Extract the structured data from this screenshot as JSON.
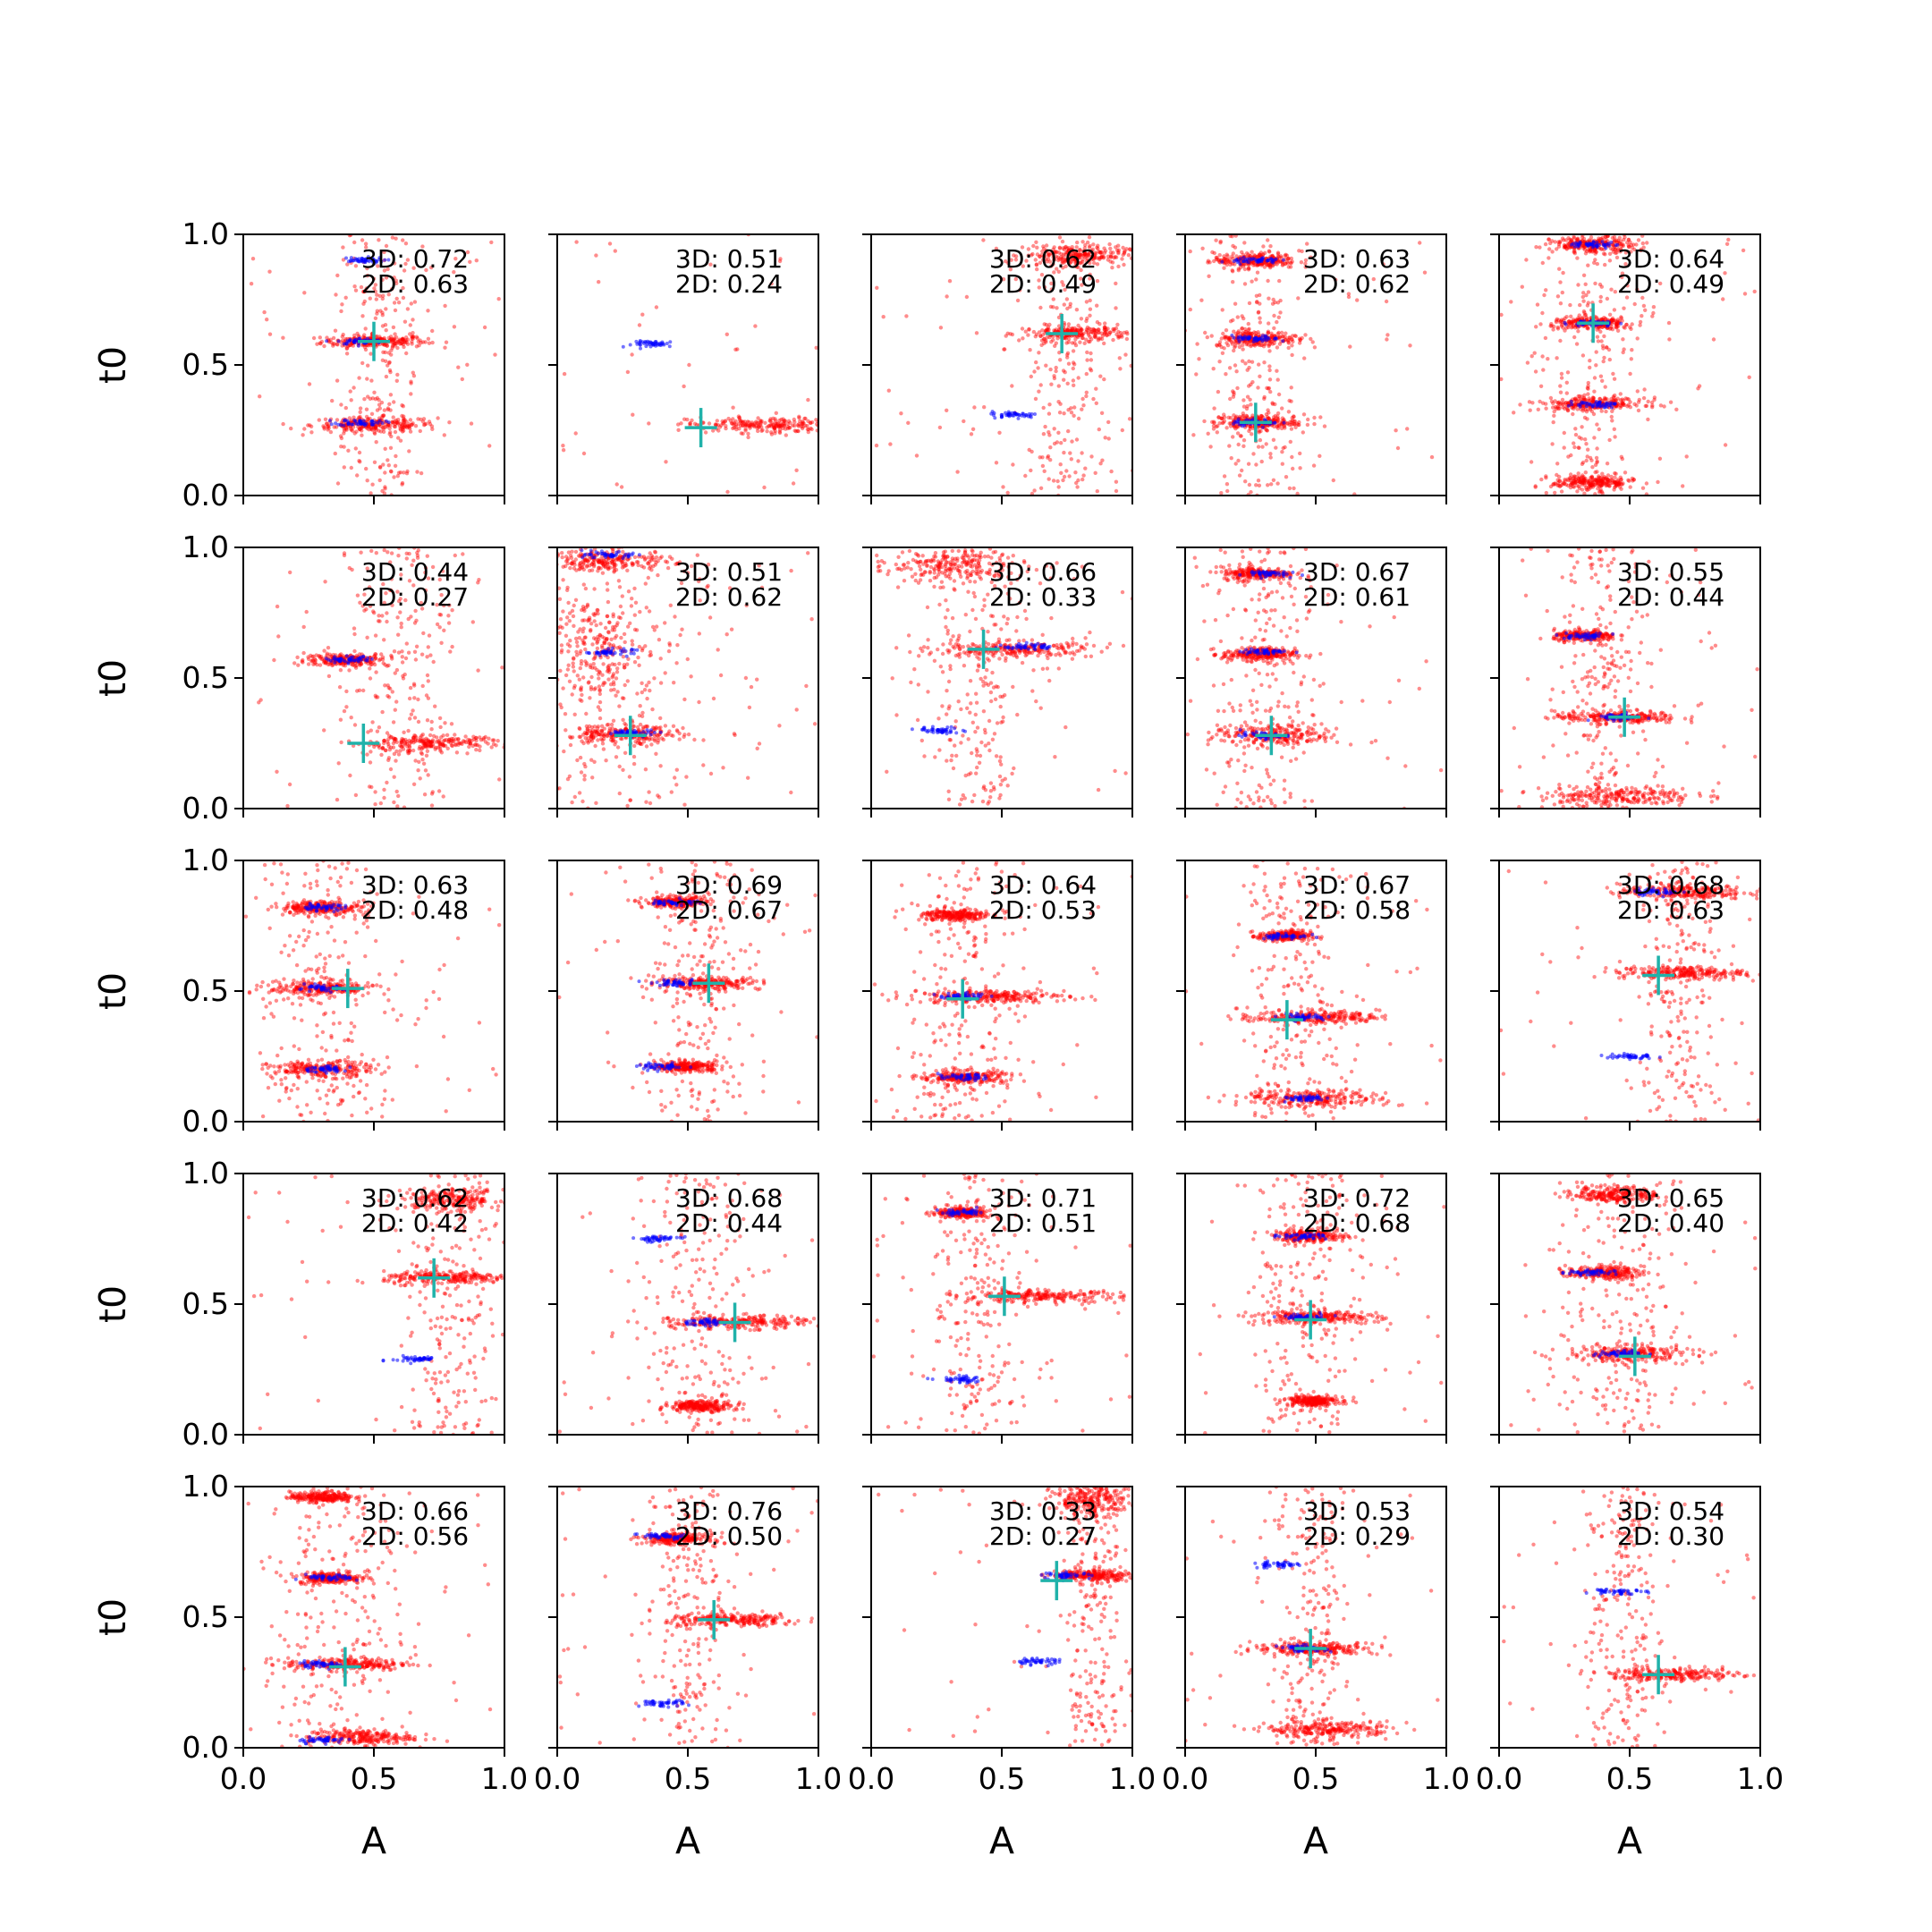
{
  "figure": {
    "rows": 5,
    "cols": 5,
    "xlabel": "A",
    "ylabel": "t0",
    "xlim": [
      0,
      1
    ],
    "ylim": [
      0,
      1
    ],
    "xticks": [
      "0.0",
      "0.5",
      "1.0"
    ],
    "yticks": [
      "0.0",
      "0.5",
      "1.0"
    ],
    "colors": {
      "model_points": "#ff0000",
      "reference_points": "#0000ff",
      "true_marker": "#20b2aa",
      "axes": "#000000"
    }
  },
  "chart_data": [
    {
      "type": "scatter",
      "row": 0,
      "col": 0,
      "annot_3d": "3D: 0.72",
      "annot_2d": "2D: 0.63",
      "truth": {
        "A": 0.5,
        "t0": 0.59
      },
      "red_clusters": [
        {
          "A": 0.5,
          "t0": 0.59,
          "spread_A": 0.1,
          "spread_t0": 0.012
        },
        {
          "A": 0.5,
          "t0": 0.27,
          "spread_A": 0.12,
          "spread_t0": 0.015
        }
      ],
      "blue_clusters": [
        {
          "A": 0.45,
          "t0": 0.59
        },
        {
          "A": 0.45,
          "t0": 0.28
        },
        {
          "A": 0.45,
          "t0": 0.9
        }
      ],
      "vertical_spread": {
        "A": 0.52,
        "width": 0.08
      }
    },
    {
      "type": "scatter",
      "row": 0,
      "col": 1,
      "annot_3d": "3D: 0.51",
      "annot_2d": "2D: 0.24",
      "truth": {
        "A": 0.55,
        "t0": 0.26
      },
      "red_clusters": [
        {
          "A": 0.8,
          "t0": 0.27,
          "spread_A": 0.15,
          "spread_t0": 0.015
        }
      ],
      "blue_clusters": [
        {
          "A": 0.38,
          "t0": 0.58
        }
      ],
      "vertical_spread": null
    },
    {
      "type": "scatter",
      "row": 0,
      "col": 2,
      "annot_3d": "3D: 0.62",
      "annot_2d": "2D: 0.49",
      "truth": {
        "A": 0.73,
        "t0": 0.62
      },
      "red_clusters": [
        {
          "A": 0.78,
          "t0": 0.62,
          "spread_A": 0.1,
          "spread_t0": 0.015
        },
        {
          "A": 0.78,
          "t0": 0.92,
          "spread_A": 0.1,
          "spread_t0": 0.02
        }
      ],
      "blue_clusters": [
        {
          "A": 0.55,
          "t0": 0.31
        }
      ],
      "vertical_spread": {
        "A": 0.75,
        "width": 0.1
      }
    },
    {
      "type": "scatter",
      "row": 0,
      "col": 3,
      "annot_3d": "3D: 0.63",
      "annot_2d": "2D: 0.62",
      "truth": {
        "A": 0.27,
        "t0": 0.28
      },
      "red_clusters": [
        {
          "A": 0.27,
          "t0": 0.6,
          "spread_A": 0.08,
          "spread_t0": 0.015
        },
        {
          "A": 0.27,
          "t0": 0.28,
          "spread_A": 0.08,
          "spread_t0": 0.015
        },
        {
          "A": 0.27,
          "t0": 0.9,
          "spread_A": 0.08,
          "spread_t0": 0.015
        }
      ],
      "blue_clusters": [
        {
          "A": 0.27,
          "t0": 0.28
        },
        {
          "A": 0.27,
          "t0": 0.6
        },
        {
          "A": 0.27,
          "t0": 0.9
        }
      ],
      "vertical_spread": {
        "A": 0.27,
        "width": 0.1
      }
    },
    {
      "type": "scatter",
      "row": 0,
      "col": 4,
      "annot_3d": "3D: 0.64",
      "annot_2d": "2D: 0.49",
      "truth": {
        "A": 0.36,
        "t0": 0.66
      },
      "red_clusters": [
        {
          "A": 0.36,
          "t0": 0.66,
          "spread_A": 0.08,
          "spread_t0": 0.012
        },
        {
          "A": 0.36,
          "t0": 0.35,
          "spread_A": 0.1,
          "spread_t0": 0.012
        },
        {
          "A": 0.36,
          "t0": 0.05,
          "spread_A": 0.08,
          "spread_t0": 0.015
        },
        {
          "A": 0.36,
          "t0": 0.96,
          "spread_A": 0.08,
          "spread_t0": 0.015
        }
      ],
      "blue_clusters": [
        {
          "A": 0.36,
          "t0": 0.96
        },
        {
          "A": 0.36,
          "t0": 0.66
        },
        {
          "A": 0.36,
          "t0": 0.35
        }
      ],
      "vertical_spread": {
        "A": 0.36,
        "width": 0.1
      }
    },
    {
      "type": "scatter",
      "row": 1,
      "col": 0,
      "annot_3d": "3D: 0.44",
      "annot_2d": "2D: 0.27",
      "truth": {
        "A": 0.46,
        "t0": 0.25
      },
      "red_clusters": [
        {
          "A": 0.7,
          "t0": 0.25,
          "spread_A": 0.15,
          "spread_t0": 0.015
        },
        {
          "A": 0.4,
          "t0": 0.57,
          "spread_A": 0.08,
          "spread_t0": 0.012
        }
      ],
      "blue_clusters": [
        {
          "A": 0.4,
          "t0": 0.57
        }
      ],
      "vertical_spread": {
        "A": 0.6,
        "width": 0.12
      }
    },
    {
      "type": "scatter",
      "row": 1,
      "col": 1,
      "annot_3d": "3D: 0.51",
      "annot_2d": "2D: 0.62",
      "truth": {
        "A": 0.28,
        "t0": 0.28
      },
      "red_clusters": [
        {
          "A": 0.25,
          "t0": 0.28,
          "spread_A": 0.12,
          "spread_t0": 0.02
        },
        {
          "A": 0.2,
          "t0": 0.95,
          "spread_A": 0.12,
          "spread_t0": 0.02
        },
        {
          "A": 0.15,
          "t0": 0.6,
          "spread_A": 0.1,
          "spread_t0": 0.1
        }
      ],
      "blue_clusters": [
        {
          "A": 0.3,
          "t0": 0.29
        },
        {
          "A": 0.2,
          "t0": 0.97
        },
        {
          "A": 0.2,
          "t0": 0.6
        }
      ],
      "vertical_spread": {
        "A": 0.2,
        "width": 0.2
      }
    },
    {
      "type": "scatter",
      "row": 1,
      "col": 2,
      "annot_3d": "3D: 0.66",
      "annot_2d": "2D: 0.33",
      "truth": {
        "A": 0.43,
        "t0": 0.61
      },
      "red_clusters": [
        {
          "A": 0.55,
          "t0": 0.61,
          "spread_A": 0.15,
          "spread_t0": 0.015
        },
        {
          "A": 0.3,
          "t0": 0.93,
          "spread_A": 0.15,
          "spread_t0": 0.03
        }
      ],
      "blue_clusters": [
        {
          "A": 0.6,
          "t0": 0.62
        },
        {
          "A": 0.27,
          "t0": 0.3
        }
      ],
      "vertical_spread": {
        "A": 0.4,
        "width": 0.1
      }
    },
    {
      "type": "scatter",
      "row": 1,
      "col": 3,
      "annot_3d": "3D: 0.67",
      "annot_2d": "2D: 0.61",
      "truth": {
        "A": 0.33,
        "t0": 0.28
      },
      "red_clusters": [
        {
          "A": 0.35,
          "t0": 0.28,
          "spread_A": 0.12,
          "spread_t0": 0.02
        },
        {
          "A": 0.28,
          "t0": 0.59,
          "spread_A": 0.07,
          "spread_t0": 0.012
        },
        {
          "A": 0.28,
          "t0": 0.9,
          "spread_A": 0.07,
          "spread_t0": 0.012
        }
      ],
      "blue_clusters": [
        {
          "A": 0.3,
          "t0": 0.28
        },
        {
          "A": 0.3,
          "t0": 0.6
        },
        {
          "A": 0.3,
          "t0": 0.9
        }
      ],
      "vertical_spread": {
        "A": 0.3,
        "width": 0.1
      }
    },
    {
      "type": "scatter",
      "row": 1,
      "col": 4,
      "annot_3d": "3D: 0.55",
      "annot_2d": "2D: 0.44",
      "truth": {
        "A": 0.48,
        "t0": 0.35
      },
      "red_clusters": [
        {
          "A": 0.45,
          "t0": 0.35,
          "spread_A": 0.12,
          "spread_t0": 0.012
        },
        {
          "A": 0.45,
          "t0": 0.05,
          "spread_A": 0.15,
          "spread_t0": 0.02
        },
        {
          "A": 0.33,
          "t0": 0.66,
          "spread_A": 0.06,
          "spread_t0": 0.01
        }
      ],
      "blue_clusters": [
        {
          "A": 0.33,
          "t0": 0.66
        },
        {
          "A": 0.45,
          "t0": 0.35
        }
      ],
      "vertical_spread": {
        "A": 0.4,
        "width": 0.1
      }
    },
    {
      "type": "scatter",
      "row": 2,
      "col": 0,
      "annot_3d": "3D: 0.63",
      "annot_2d": "2D: 0.48",
      "truth": {
        "A": 0.4,
        "t0": 0.51
      },
      "red_clusters": [
        {
          "A": 0.3,
          "t0": 0.51,
          "spread_A": 0.1,
          "spread_t0": 0.015
        },
        {
          "A": 0.3,
          "t0": 0.2,
          "spread_A": 0.1,
          "spread_t0": 0.015
        },
        {
          "A": 0.3,
          "t0": 0.82,
          "spread_A": 0.08,
          "spread_t0": 0.012
        }
      ],
      "blue_clusters": [
        {
          "A": 0.3,
          "t0": 0.2
        },
        {
          "A": 0.3,
          "t0": 0.51
        },
        {
          "A": 0.3,
          "t0": 0.82
        }
      ],
      "vertical_spread": {
        "A": 0.3,
        "width": 0.12
      }
    },
    {
      "type": "scatter",
      "row": 2,
      "col": 1,
      "annot_3d": "3D: 0.69",
      "annot_2d": "2D: 0.67",
      "truth": {
        "A": 0.58,
        "t0": 0.53
      },
      "red_clusters": [
        {
          "A": 0.58,
          "t0": 0.53,
          "spread_A": 0.1,
          "spread_t0": 0.012
        },
        {
          "A": 0.5,
          "t0": 0.21,
          "spread_A": 0.06,
          "spread_t0": 0.01
        },
        {
          "A": 0.45,
          "t0": 0.84,
          "spread_A": 0.06,
          "spread_t0": 0.01
        }
      ],
      "blue_clusters": [
        {
          "A": 0.45,
          "t0": 0.84
        },
        {
          "A": 0.45,
          "t0": 0.53
        },
        {
          "A": 0.4,
          "t0": 0.21
        }
      ],
      "vertical_spread": {
        "A": 0.55,
        "width": 0.1
      }
    },
    {
      "type": "scatter",
      "row": 2,
      "col": 2,
      "annot_3d": "3D: 0.64",
      "annot_2d": "2D: 0.53",
      "truth": {
        "A": 0.35,
        "t0": 0.47
      },
      "red_clusters": [
        {
          "A": 0.45,
          "t0": 0.48,
          "spread_A": 0.15,
          "spread_t0": 0.012
        },
        {
          "A": 0.32,
          "t0": 0.79,
          "spread_A": 0.06,
          "spread_t0": 0.012
        },
        {
          "A": 0.35,
          "t0": 0.17,
          "spread_A": 0.08,
          "spread_t0": 0.012
        }
      ],
      "blue_clusters": [
        {
          "A": 0.35,
          "t0": 0.17
        },
        {
          "A": 0.35,
          "t0": 0.48
        }
      ],
      "vertical_spread": {
        "A": 0.35,
        "width": 0.12
      }
    },
    {
      "type": "scatter",
      "row": 2,
      "col": 3,
      "annot_3d": "3D: 0.67",
      "annot_2d": "2D: 0.58",
      "truth": {
        "A": 0.39,
        "t0": 0.39
      },
      "red_clusters": [
        {
          "A": 0.5,
          "t0": 0.4,
          "spread_A": 0.12,
          "spread_t0": 0.012
        },
        {
          "A": 0.5,
          "t0": 0.09,
          "spread_A": 0.14,
          "spread_t0": 0.015
        },
        {
          "A": 0.38,
          "t0": 0.71,
          "spread_A": 0.05,
          "spread_t0": 0.01
        }
      ],
      "blue_clusters": [
        {
          "A": 0.38,
          "t0": 0.71
        },
        {
          "A": 0.45,
          "t0": 0.4
        },
        {
          "A": 0.45,
          "t0": 0.09
        }
      ],
      "vertical_spread": {
        "A": 0.42,
        "width": 0.1
      }
    },
    {
      "type": "scatter",
      "row": 2,
      "col": 4,
      "annot_3d": "3D: 0.68",
      "annot_2d": "2D: 0.63",
      "truth": {
        "A": 0.61,
        "t0": 0.56
      },
      "red_clusters": [
        {
          "A": 0.7,
          "t0": 0.57,
          "spread_A": 0.12,
          "spread_t0": 0.012
        },
        {
          "A": 0.7,
          "t0": 0.88,
          "spread_A": 0.12,
          "spread_t0": 0.015
        }
      ],
      "blue_clusters": [
        {
          "A": 0.5,
          "t0": 0.25
        },
        {
          "A": 0.6,
          "t0": 0.88
        }
      ],
      "vertical_spread": {
        "A": 0.7,
        "width": 0.08
      }
    },
    {
      "type": "scatter",
      "row": 3,
      "col": 0,
      "annot_3d": "3D: 0.62",
      "annot_2d": "2D: 0.42",
      "truth": {
        "A": 0.73,
        "t0": 0.6
      },
      "red_clusters": [
        {
          "A": 0.78,
          "t0": 0.6,
          "spread_A": 0.12,
          "spread_t0": 0.012
        },
        {
          "A": 0.8,
          "t0": 0.9,
          "spread_A": 0.1,
          "spread_t0": 0.02
        }
      ],
      "blue_clusters": [
        {
          "A": 0.66,
          "t0": 0.29
        }
      ],
      "vertical_spread": {
        "A": 0.8,
        "width": 0.1
      }
    },
    {
      "type": "scatter",
      "row": 3,
      "col": 1,
      "annot_3d": "3D: 0.68",
      "annot_2d": "2D: 0.44",
      "truth": {
        "A": 0.68,
        "t0": 0.43
      },
      "red_clusters": [
        {
          "A": 0.7,
          "t0": 0.43,
          "spread_A": 0.13,
          "spread_t0": 0.012
        },
        {
          "A": 0.55,
          "t0": 0.11,
          "spread_A": 0.06,
          "spread_t0": 0.01
        }
      ],
      "blue_clusters": [
        {
          "A": 0.38,
          "t0": 0.75
        },
        {
          "A": 0.55,
          "t0": 0.43
        }
      ],
      "vertical_spread": {
        "A": 0.55,
        "width": 0.12
      }
    },
    {
      "type": "scatter",
      "row": 3,
      "col": 2,
      "annot_3d": "3D: 0.71",
      "annot_2d": "2D: 0.51",
      "truth": {
        "A": 0.51,
        "t0": 0.53
      },
      "red_clusters": [
        {
          "A": 0.65,
          "t0": 0.53,
          "spread_A": 0.15,
          "spread_t0": 0.012
        },
        {
          "A": 0.35,
          "t0": 0.85,
          "spread_A": 0.05,
          "spread_t0": 0.01
        }
      ],
      "blue_clusters": [
        {
          "A": 0.35,
          "t0": 0.21
        },
        {
          "A": 0.35,
          "t0": 0.85
        }
      ],
      "vertical_spread": {
        "A": 0.4,
        "width": 0.1
      }
    },
    {
      "type": "scatter",
      "row": 3,
      "col": 3,
      "annot_3d": "3D: 0.72",
      "annot_2d": "2D: 0.68",
      "truth": {
        "A": 0.48,
        "t0": 0.44
      },
      "red_clusters": [
        {
          "A": 0.5,
          "t0": 0.45,
          "spread_A": 0.12,
          "spread_t0": 0.012
        },
        {
          "A": 0.48,
          "t0": 0.76,
          "spread_A": 0.07,
          "spread_t0": 0.012
        },
        {
          "A": 0.48,
          "t0": 0.13,
          "spread_A": 0.05,
          "spread_t0": 0.01
        }
      ],
      "blue_clusters": [
        {
          "A": 0.45,
          "t0": 0.76
        },
        {
          "A": 0.45,
          "t0": 0.45
        }
      ],
      "vertical_spread": {
        "A": 0.48,
        "width": 0.1
      }
    },
    {
      "type": "scatter",
      "row": 3,
      "col": 4,
      "annot_3d": "3D: 0.65",
      "annot_2d": "2D: 0.40",
      "truth": {
        "A": 0.52,
        "t0": 0.3
      },
      "red_clusters": [
        {
          "A": 0.5,
          "t0": 0.31,
          "spread_A": 0.12,
          "spread_t0": 0.015
        },
        {
          "A": 0.4,
          "t0": 0.62,
          "spread_A": 0.07,
          "spread_t0": 0.012
        },
        {
          "A": 0.45,
          "t0": 0.92,
          "spread_A": 0.08,
          "spread_t0": 0.015
        }
      ],
      "blue_clusters": [
        {
          "A": 0.35,
          "t0": 0.62
        },
        {
          "A": 0.45,
          "t0": 0.31
        }
      ],
      "vertical_spread": {
        "A": 0.45,
        "width": 0.12
      }
    },
    {
      "type": "scatter",
      "row": 4,
      "col": 0,
      "annot_3d": "3D: 0.66",
      "annot_2d": "2D: 0.56",
      "truth": {
        "A": 0.39,
        "t0": 0.31
      },
      "red_clusters": [
        {
          "A": 0.4,
          "t0": 0.32,
          "spread_A": 0.12,
          "spread_t0": 0.012
        },
        {
          "A": 0.33,
          "t0": 0.65,
          "spread_A": 0.06,
          "spread_t0": 0.01
        },
        {
          "A": 0.45,
          "t0": 0.04,
          "spread_A": 0.1,
          "spread_t0": 0.015
        },
        {
          "A": 0.3,
          "t0": 0.96,
          "spread_A": 0.06,
          "spread_t0": 0.01
        }
      ],
      "blue_clusters": [
        {
          "A": 0.3,
          "t0": 0.32
        },
        {
          "A": 0.33,
          "t0": 0.65
        },
        {
          "A": 0.3,
          "t0": 0.03
        }
      ],
      "vertical_spread": {
        "A": 0.38,
        "width": 0.12
      }
    },
    {
      "type": "scatter",
      "row": 4,
      "col": 1,
      "annot_3d": "3D: 0.76",
      "annot_2d": "2D: 0.50",
      "truth": {
        "A": 0.6,
        "t0": 0.49
      },
      "red_clusters": [
        {
          "A": 0.68,
          "t0": 0.49,
          "spread_A": 0.13,
          "spread_t0": 0.012
        },
        {
          "A": 0.45,
          "t0": 0.8,
          "spread_A": 0.06,
          "spread_t0": 0.01
        }
      ],
      "blue_clusters": [
        {
          "A": 0.4,
          "t0": 0.81
        },
        {
          "A": 0.4,
          "t0": 0.17
        }
      ],
      "vertical_spread": {
        "A": 0.5,
        "width": 0.08
      }
    },
    {
      "type": "scatter",
      "row": 4,
      "col": 2,
      "annot_3d": "3D: 0.33",
      "annot_2d": "2D: 0.27",
      "truth": {
        "A": 0.71,
        "t0": 0.64
      },
      "red_clusters": [
        {
          "A": 0.85,
          "t0": 0.95,
          "spread_A": 0.08,
          "spread_t0": 0.03
        },
        {
          "A": 0.85,
          "t0": 0.66,
          "spread_A": 0.08,
          "spread_t0": 0.01
        }
      ],
      "blue_clusters": [
        {
          "A": 0.63,
          "t0": 0.33
        },
        {
          "A": 0.75,
          "t0": 0.66
        }
      ],
      "vertical_spread": {
        "A": 0.85,
        "width": 0.06
      }
    },
    {
      "type": "scatter",
      "row": 4,
      "col": 3,
      "annot_3d": "3D: 0.53",
      "annot_2d": "2D: 0.29",
      "truth": {
        "A": 0.48,
        "t0": 0.38
      },
      "red_clusters": [
        {
          "A": 0.5,
          "t0": 0.38,
          "spread_A": 0.12,
          "spread_t0": 0.012
        },
        {
          "A": 0.55,
          "t0": 0.07,
          "spread_A": 0.12,
          "spread_t0": 0.015
        }
      ],
      "blue_clusters": [
        {
          "A": 0.35,
          "t0": 0.7
        },
        {
          "A": 0.45,
          "t0": 0.38
        }
      ],
      "vertical_spread": {
        "A": 0.48,
        "width": 0.08
      }
    },
    {
      "type": "scatter",
      "row": 4,
      "col": 4,
      "annot_3d": "3D: 0.54",
      "annot_2d": "2D: 0.30",
      "truth": {
        "A": 0.61,
        "t0": 0.28
      },
      "red_clusters": [
        {
          "A": 0.68,
          "t0": 0.28,
          "spread_A": 0.12,
          "spread_t0": 0.012
        }
      ],
      "blue_clusters": [
        {
          "A": 0.45,
          "t0": 0.6
        }
      ],
      "vertical_spread": {
        "A": 0.48,
        "width": 0.08
      }
    }
  ]
}
